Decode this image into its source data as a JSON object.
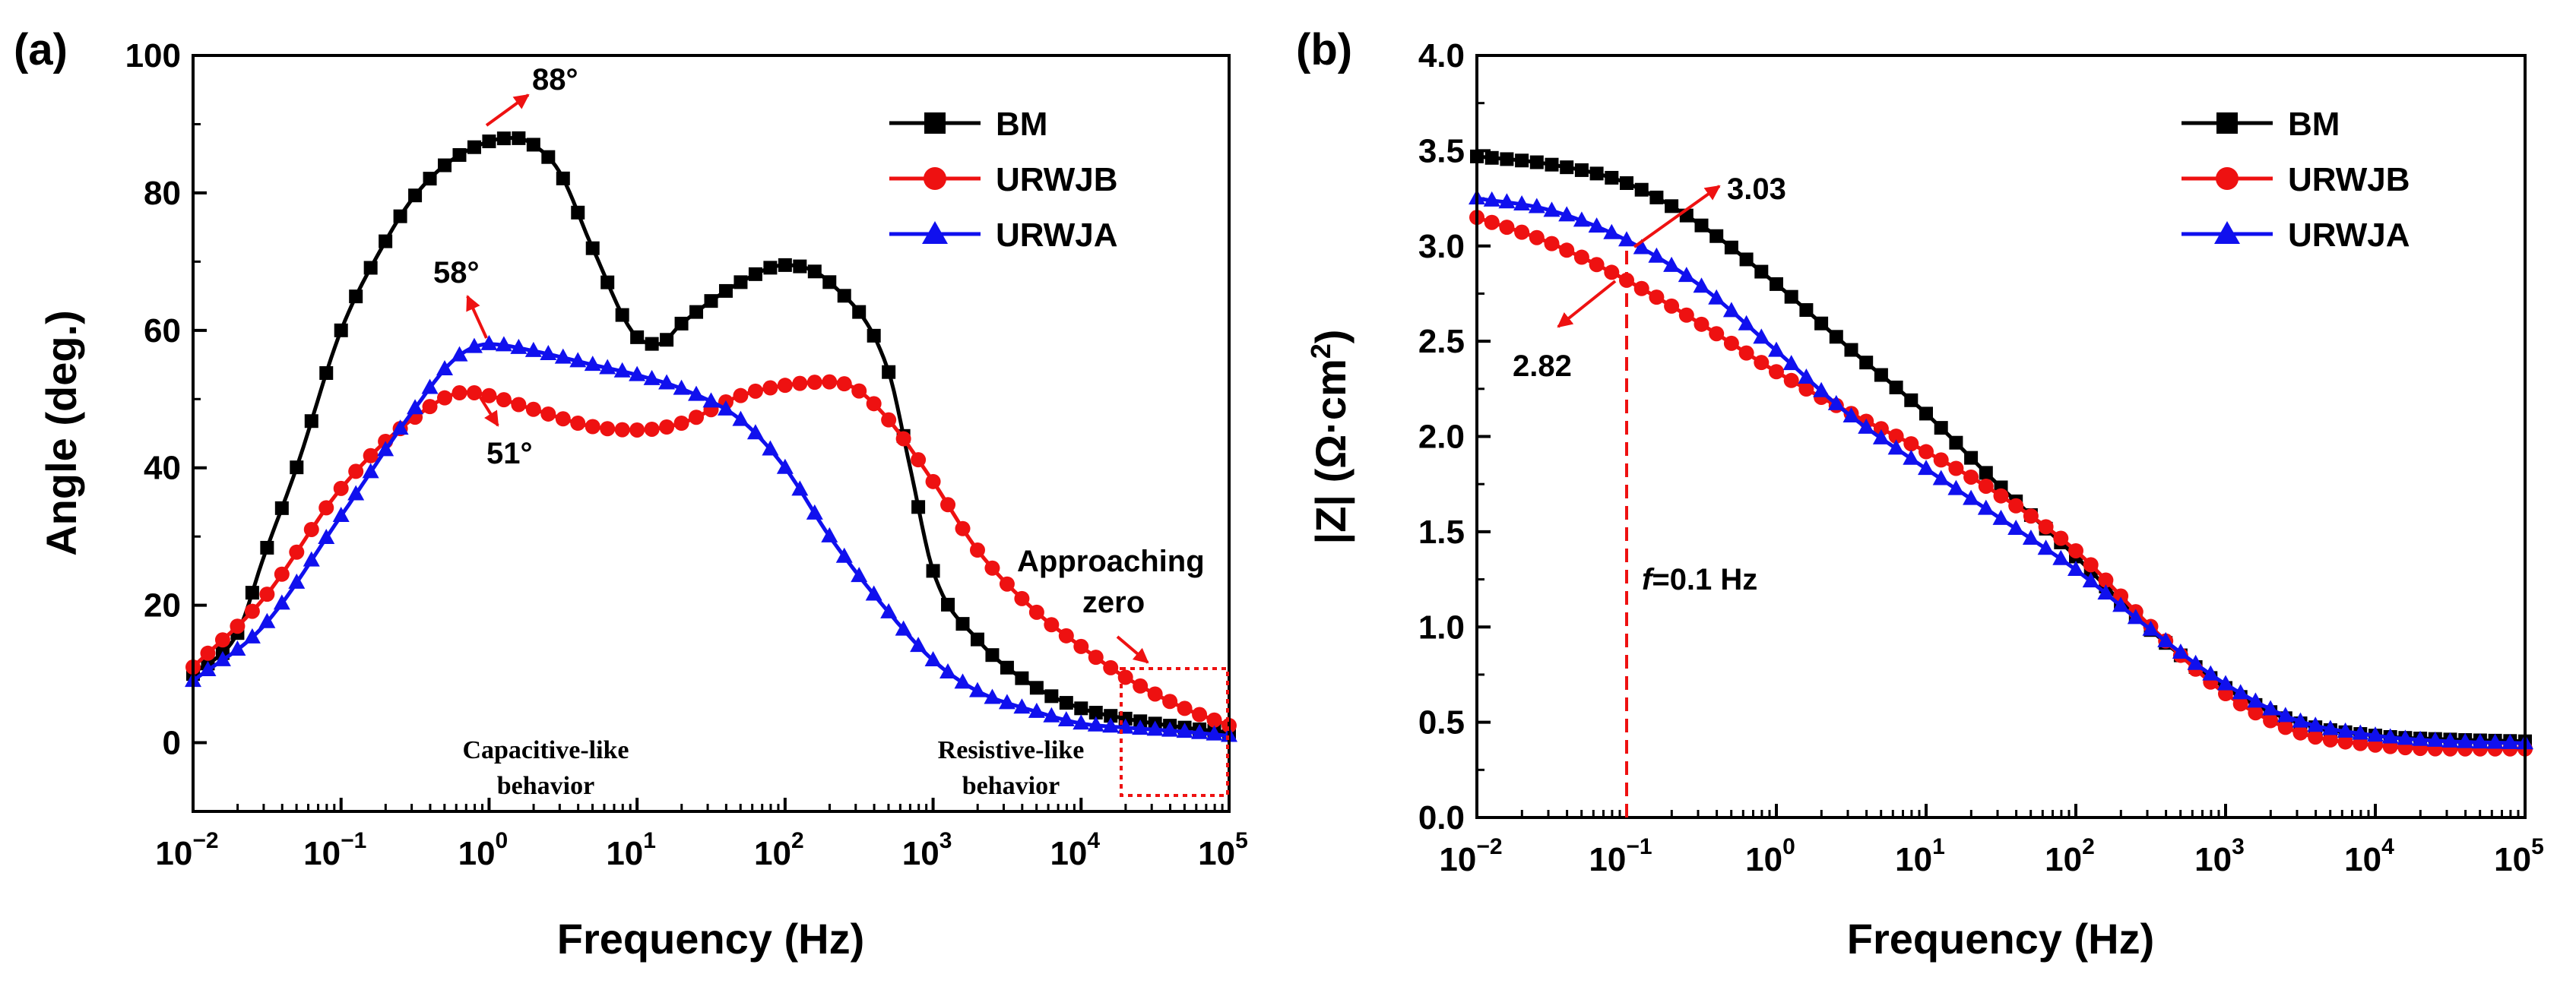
{
  "chart_data": [
    {
      "panel_label": "(a)",
      "type": "line",
      "xscale": "log",
      "xlabel": "Frequency (Hz)",
      "ylabel": "Angle (deg.)",
      "xlim": [
        0.01,
        100000
      ],
      "ylim": [
        -10,
        100
      ],
      "yticks": [
        "0",
        "20",
        "40",
        "60",
        "80",
        "100"
      ],
      "xtick_base": "10",
      "xtick_exponents": [
        "−2",
        "−1",
        "0",
        "1",
        "2",
        "3",
        "4",
        "5"
      ],
      "legend": {
        "position": "top-right",
        "entries": [
          "BM",
          "URWJB",
          "URWJA"
        ]
      },
      "series": [
        {
          "name": "BM",
          "color": "#000000",
          "marker": "square",
          "points": [
            [
              0.01,
              10
            ],
            [
              0.02,
              16
            ],
            [
              0.03,
              27
            ],
            [
              0.05,
              40
            ],
            [
              0.1,
              60
            ],
            [
              0.2,
              73
            ],
            [
              0.3,
              79
            ],
            [
              0.5,
              84
            ],
            [
              1,
              87.5
            ],
            [
              1.5,
              88
            ],
            [
              2,
              87
            ],
            [
              3,
              83
            ],
            [
              5,
              72
            ],
            [
              10,
              59
            ],
            [
              14,
              58
            ],
            [
              20,
              61
            ],
            [
              50,
              67
            ],
            [
              100,
              69.5
            ],
            [
              200,
              67
            ],
            [
              500,
              54
            ],
            [
              700,
              40
            ],
            [
              1000,
              25
            ],
            [
              2000,
              15
            ],
            [
              5000,
              8
            ],
            [
              10000,
              5
            ],
            [
              20000,
              3.5
            ],
            [
              50000,
              2.2
            ],
            [
              100000,
              1.5
            ]
          ]
        },
        {
          "name": "URWJB",
          "color": "#ee1111",
          "marker": "circle",
          "points": [
            [
              0.01,
              11
            ],
            [
              0.03,
              21
            ],
            [
              0.1,
              37
            ],
            [
              0.3,
              47
            ],
            [
              0.7,
              51
            ],
            [
              1,
              50.5
            ],
            [
              2,
              48.5
            ],
            [
              5,
              46
            ],
            [
              10,
              45.5
            ],
            [
              20,
              46.5
            ],
            [
              50,
              50.5
            ],
            [
              100,
              52
            ],
            [
              200,
              52.5
            ],
            [
              300,
              51.5
            ],
            [
              500,
              47
            ],
            [
              1000,
              38
            ],
            [
              2000,
              28
            ],
            [
              5000,
              19
            ],
            [
              10000,
              14
            ],
            [
              20000,
              9.5
            ],
            [
              50000,
              5
            ],
            [
              100000,
              2.5
            ]
          ]
        },
        {
          "name": "URWJA",
          "color": "#1010ee",
          "marker": "triangle",
          "points": [
            [
              0.01,
              9
            ],
            [
              0.03,
              17
            ],
            [
              0.1,
              33
            ],
            [
              0.3,
              48
            ],
            [
              0.6,
              56
            ],
            [
              1,
              58
            ],
            [
              2,
              57
            ],
            [
              5,
              55
            ],
            [
              10,
              53.5
            ],
            [
              20,
              51.5
            ],
            [
              50,
              47
            ],
            [
              100,
              40
            ],
            [
              200,
              30
            ],
            [
              500,
              19
            ],
            [
              1000,
              12
            ],
            [
              2000,
              7.5
            ],
            [
              5000,
              4.5
            ],
            [
              10000,
              2.8
            ],
            [
              20000,
              2.2
            ],
            [
              50000,
              1.6
            ],
            [
              100000,
              1
            ]
          ]
        }
      ],
      "annotations": {
        "bm_peak": "88°",
        "urwja_peak": "58°",
        "urwjb_peak": "51°",
        "approaching_line1": "Approaching",
        "approaching_line2": "zero",
        "capacitive_line1": "Capacitive-like",
        "capacitive_line2": "behavior",
        "resistive_line1": "Resistive-like",
        "resistive_line2": "behavior"
      }
    },
    {
      "panel_label": "(b)",
      "type": "line",
      "xscale": "log",
      "xlabel": "Frequency (Hz)",
      "ylabel_prefix": "|Z| (Ω·cm",
      "ylabel_sup": "2",
      "ylabel_suffix": ")",
      "xlim": [
        0.01,
        100000
      ],
      "ylim": [
        0,
        4
      ],
      "yticks": [
        "0.0",
        "0.5",
        "1.0",
        "1.5",
        "2.0",
        "2.5",
        "3.0",
        "3.5",
        "4.0"
      ],
      "xtick_base": "10",
      "xtick_exponents": [
        "−2",
        "−1",
        "0",
        "1",
        "2",
        "3",
        "4",
        "5"
      ],
      "legend": {
        "position": "top-right",
        "entries": [
          "BM",
          "URWJB",
          "URWJA"
        ]
      },
      "series": [
        {
          "name": "BM",
          "color": "#000000",
          "marker": "square",
          "points": [
            [
              0.01,
              3.47
            ],
            [
              0.03,
              3.43
            ],
            [
              0.1,
              3.33
            ],
            [
              0.3,
              3.12
            ],
            [
              1,
              2.8
            ],
            [
              3,
              2.47
            ],
            [
              10,
              2.12
            ],
            [
              30,
              1.75
            ],
            [
              100,
              1.37
            ],
            [
              300,
              1.0
            ],
            [
              1000,
              0.68
            ],
            [
              3000,
              0.5
            ],
            [
              10000,
              0.43
            ],
            [
              30000,
              0.41
            ],
            [
              100000,
              0.4
            ]
          ]
        },
        {
          "name": "URWJB",
          "color": "#ee1111",
          "marker": "circle",
          "points": [
            [
              0.01,
              3.15
            ],
            [
              0.03,
              3.02
            ],
            [
              0.1,
              2.82
            ],
            [
              0.3,
              2.6
            ],
            [
              1,
              2.34
            ],
            [
              3,
              2.13
            ],
            [
              10,
              1.92
            ],
            [
              30,
              1.7
            ],
            [
              100,
              1.4
            ],
            [
              300,
              1.02
            ],
            [
              1000,
              0.65
            ],
            [
              3000,
              0.45
            ],
            [
              10000,
              0.38
            ],
            [
              30000,
              0.36
            ],
            [
              100000,
              0.36
            ]
          ]
        },
        {
          "name": "URWJA",
          "color": "#1010ee",
          "marker": "triangle",
          "points": [
            [
              0.01,
              3.25
            ],
            [
              0.03,
              3.19
            ],
            [
              0.1,
              3.03
            ],
            [
              0.3,
              2.8
            ],
            [
              1,
              2.45
            ],
            [
              3,
              2.12
            ],
            [
              10,
              1.83
            ],
            [
              30,
              1.58
            ],
            [
              100,
              1.3
            ],
            [
              300,
              1.0
            ],
            [
              1000,
              0.7
            ],
            [
              3000,
              0.51
            ],
            [
              10000,
              0.43
            ],
            [
              30000,
              0.4
            ],
            [
              100000,
              0.39
            ]
          ]
        }
      ],
      "annotations": {
        "upper_value": "3.03",
        "lower_value": "2.82",
        "freq_marker_italic": "f",
        "freq_marker_rest": "=0.1 Hz",
        "freq_marker_x": 0.1
      }
    }
  ]
}
